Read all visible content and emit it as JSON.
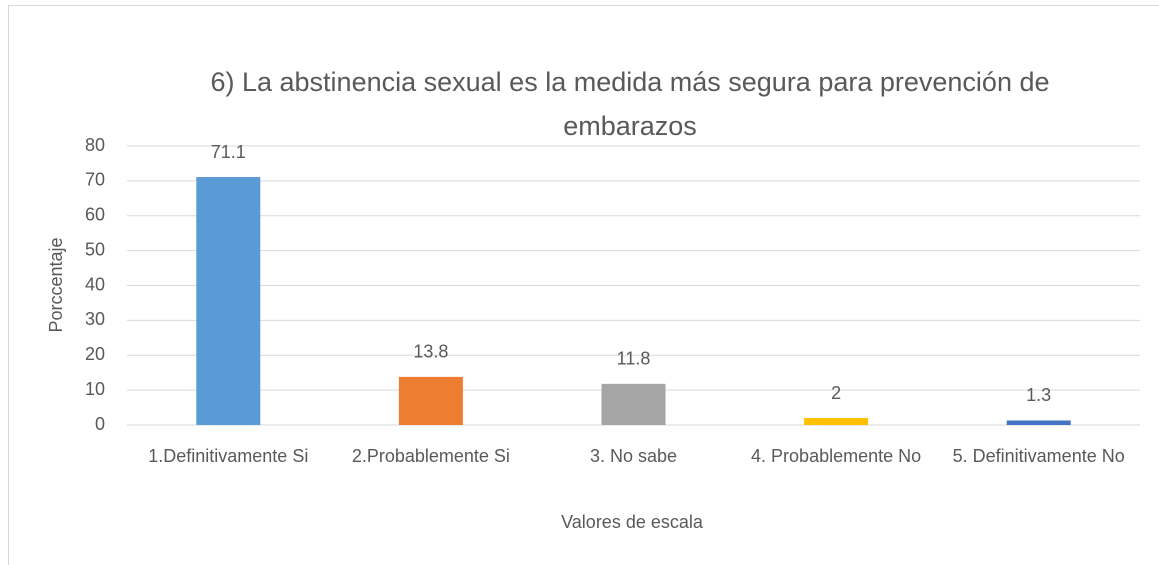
{
  "chart_data": {
    "type": "bar",
    "title": "6) La abstinencia sexual es la medida más segura para prevención de embarazos",
    "categories": [
      "1.Definitivamente Si",
      "2.Probablemente Si",
      "3. No sabe",
      "4. Probablemente No",
      "5. Definitivamente No"
    ],
    "values": [
      71.1,
      13.8,
      11.8,
      2,
      1.3
    ],
    "colors": [
      "#5b9bd5",
      "#ed7d31",
      "#a5a5a5",
      "#ffc000",
      "#4472c4"
    ],
    "x_label": "Valores de escala",
    "y_label": "Porccentaje",
    "ylim": [
      0,
      80
    ],
    "yticks": [
      0,
      10,
      20,
      30,
      40,
      50,
      60,
      70,
      80
    ],
    "grid": true
  }
}
